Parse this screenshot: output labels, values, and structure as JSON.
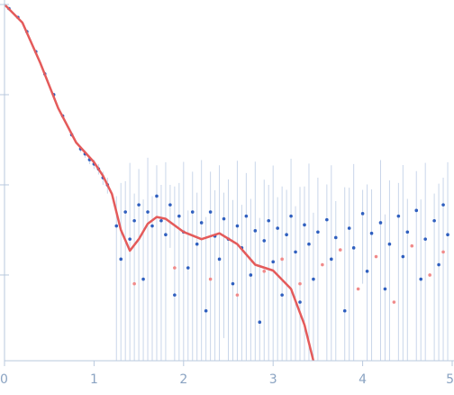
{
  "chart_data": {
    "type": "scatter",
    "log_y": true,
    "xlim": [
      0,
      5
    ],
    "xticks": [
      0,
      1,
      2,
      3,
      4,
      5
    ],
    "ylim": [
      0.000112,
      1
    ],
    "yticks": [
      1,
      0.1,
      0.01,
      0.001
    ],
    "series": [
      {
        "color": "#2f5fbf",
        "error_color": "#c9d6ea",
        "x": [
          0.05,
          0.15,
          0.25,
          0.35,
          0.45,
          0.55,
          0.65,
          0.75,
          0.85,
          0.9,
          0.95,
          1.0,
          1.05,
          1.1,
          1.15,
          1.25,
          1.3,
          1.35,
          1.4,
          1.45,
          1.5,
          1.55,
          1.6,
          1.65,
          1.7,
          1.75,
          1.8,
          1.85,
          1.9,
          1.95,
          2.0,
          2.05,
          2.1,
          2.15,
          2.2,
          2.25,
          2.3,
          2.35,
          2.4,
          2.45,
          2.5,
          2.55,
          2.6,
          2.65,
          2.7,
          2.75,
          2.8,
          2.85,
          2.9,
          2.95,
          3.0,
          3.05,
          3.1,
          3.15,
          3.2,
          3.25,
          3.3,
          3.35,
          3.4,
          3.45,
          3.5,
          3.6,
          3.65,
          3.7,
          3.8,
          3.85,
          3.9,
          4.0,
          4.05,
          4.1,
          4.2,
          4.25,
          4.3,
          4.4,
          4.45,
          4.5,
          4.6,
          4.65,
          4.7,
          4.8,
          4.85,
          4.9,
          4.95
        ],
        "values": [
          0.9,
          0.72,
          0.5,
          0.3,
          0.17,
          0.1,
          0.058,
          0.036,
          0.025,
          0.022,
          0.019,
          0.017,
          0.015,
          0.012,
          0.01,
          0.0035,
          0.0015,
          0.005,
          0.0025,
          0.004,
          0.006,
          0.0009,
          0.005,
          0.0035,
          0.0075,
          0.004,
          0.0028,
          0.006,
          0.0006,
          0.0045,
          0.003,
          0.0012,
          0.005,
          0.0022,
          0.0038,
          0.0004,
          0.005,
          0.0027,
          0.0015,
          0.0042,
          0.0025,
          0.0008,
          0.0035,
          0.002,
          0.0045,
          0.001,
          0.0031,
          0.0003,
          0.0024,
          0.004,
          0.0014,
          0.0033,
          0.0006,
          0.0028,
          0.0045,
          0.0018,
          0.0005,
          0.0036,
          0.0022,
          0.0009,
          0.003,
          0.0041,
          0.0015,
          0.0026,
          0.0004,
          0.0033,
          0.002,
          0.0048,
          0.0011,
          0.0029,
          0.0038,
          0.0007,
          0.0022,
          0.0045,
          0.0016,
          0.003,
          0.0052,
          0.0009,
          0.0025,
          0.004,
          0.0013,
          0.006,
          0.0028
        ],
        "errors": [
          0.02,
          0.02,
          0.015,
          0.01,
          0.006,
          0.004,
          0.003,
          0.002,
          0.002,
          0.002,
          0.002,
          0.002,
          0.002,
          0.002,
          0.002,
          0.004,
          0.009,
          0.006,
          0.015,
          0.004,
          0.009,
          0.006,
          0.015,
          0.004,
          0.009,
          0.006,
          0.015,
          0.004,
          0.009,
          0.006,
          0.015,
          0.004,
          0.009,
          0.006,
          0.015,
          0.004,
          0.009,
          0.006,
          0.015,
          0.004,
          0.009,
          0.006,
          0.015,
          0.004,
          0.009,
          0.006,
          0.015,
          0.004,
          0.009,
          0.006,
          0.015,
          0.004,
          0.009,
          0.006,
          0.015,
          0.004,
          0.009,
          0.006,
          0.015,
          0.004,
          0.009,
          0.006,
          0.015,
          0.004,
          0.009,
          0.006,
          0.015,
          0.004,
          0.009,
          0.006,
          0.015,
          0.004,
          0.009,
          0.006,
          0.015,
          0.004,
          0.009,
          0.006,
          0.015,
          0.004,
          0.009,
          0.006,
          0.015
        ]
      },
      {
        "color": "#f08a8a",
        "x": [
          1.45,
          1.9,
          2.3,
          2.6,
          2.9,
          3.1,
          3.3,
          3.55,
          3.75,
          3.95,
          4.15,
          4.35,
          4.55,
          4.75,
          4.9
        ],
        "values": [
          0.0008,
          0.0012,
          0.0009,
          0.0006,
          0.0011,
          0.0015,
          0.0008,
          0.0013,
          0.0019,
          0.0007,
          0.0016,
          0.0005,
          0.0021,
          0.001,
          0.0018
        ]
      }
    ],
    "fit": {
      "color": "#e45b5b",
      "x": [
        0,
        0.2,
        0.4,
        0.6,
        0.8,
        1.0,
        1.1,
        1.2,
        1.3,
        1.4,
        1.5,
        1.6,
        1.7,
        1.8,
        2.0,
        2.2,
        2.4,
        2.6,
        2.8,
        3.0,
        3.2,
        3.35,
        3.45
      ],
      "values": [
        1,
        0.63,
        0.224,
        0.071,
        0.0295,
        0.0178,
        0.0126,
        0.0079,
        0.00316,
        0.00186,
        0.0025,
        0.0037,
        0.0044,
        0.0042,
        0.003,
        0.0025,
        0.0029,
        0.0022,
        0.0013,
        0.00112,
        0.0007,
        0.00028,
        0.000112
      ]
    }
  }
}
